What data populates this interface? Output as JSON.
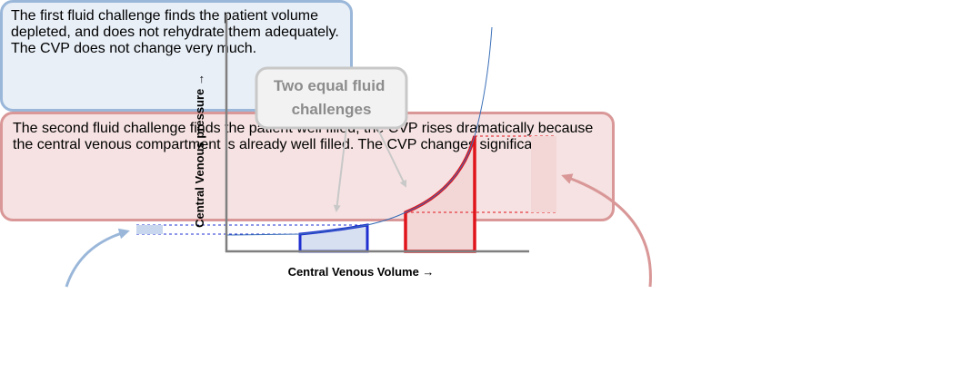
{
  "diagram": {
    "x_axis_label": "Central Venous Volume →",
    "y_axis_label": "Central Venous pressure →",
    "callout_label": "Two equal fluid challenges",
    "callout_lines": [
      "Two equal fluid",
      "challenges"
    ],
    "notes": {
      "first": "The first fluid challenge finds the patient volume depleted, and does not rehydrate them adequately. The CVP does not change very much.",
      "second": "The second fluid challenge finds the patient well filled; the CVP rises dramatically because the central venous compartment is already well filled. The CVP changes significantly."
    },
    "colors": {
      "curve": "#3a6fb8",
      "first_challenge": "#1f2fd0",
      "first_fill": "#d6e0f1",
      "second_challenge": "#e0141b",
      "second_fill": "#f3d7d7",
      "callout_border": "#c8c8c8",
      "callout_text": "#8c8c8c",
      "first_note_border": "#9ab7d9",
      "second_note_border": "#d99797"
    }
  }
}
